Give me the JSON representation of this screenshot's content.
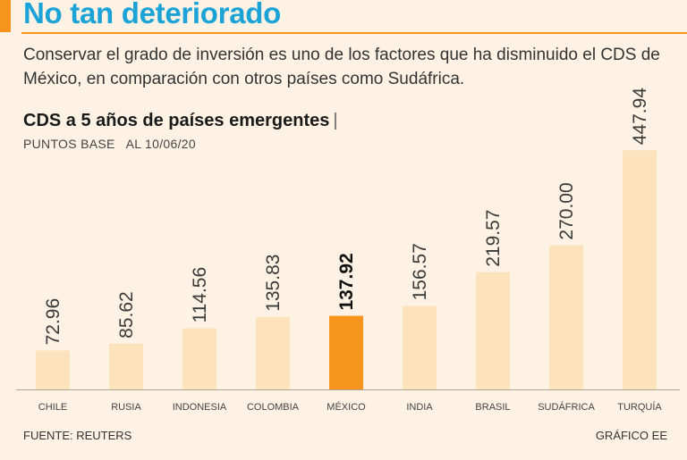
{
  "header": {
    "title": "No tan deteriorado",
    "intro": "Conservar el grado de inversión es uno de los factores que ha disminuido el CDS de México, en comparación con otros países como Sudáfrica."
  },
  "chart_data": {
    "type": "bar",
    "title": "CDS a 5 años de países emergentes",
    "title_separator": "|",
    "units": "PUNTOS BASE",
    "date": "AL 10/06/20",
    "categories": [
      "CHILE",
      "RUSIA",
      "INDONESIA",
      "COLOMBIA",
      "MÉXICO",
      "INDIA",
      "BRASIL",
      "SUDÁFRICA",
      "TURQUÍA"
    ],
    "values": [
      72.96,
      85.62,
      114.56,
      135.83,
      137.92,
      156.57,
      219.57,
      270.0,
      447.94
    ],
    "value_labels": [
      "72.96",
      "85.62",
      "114.56",
      "135.83",
      "137.92",
      "156.57",
      "219.57",
      "270.00",
      "447.94"
    ],
    "highlight": "MÉXICO",
    "colors": {
      "bar": "#fde3bc",
      "highlight": "#f7941d",
      "accent": "#f7941d",
      "headline": "#1ba3d8"
    },
    "ylim": [
      0,
      450
    ],
    "xlabel": "",
    "ylabel": ""
  },
  "footer": {
    "source": "FUENTE: REUTERS",
    "credit": "GRÁFICO EE"
  }
}
